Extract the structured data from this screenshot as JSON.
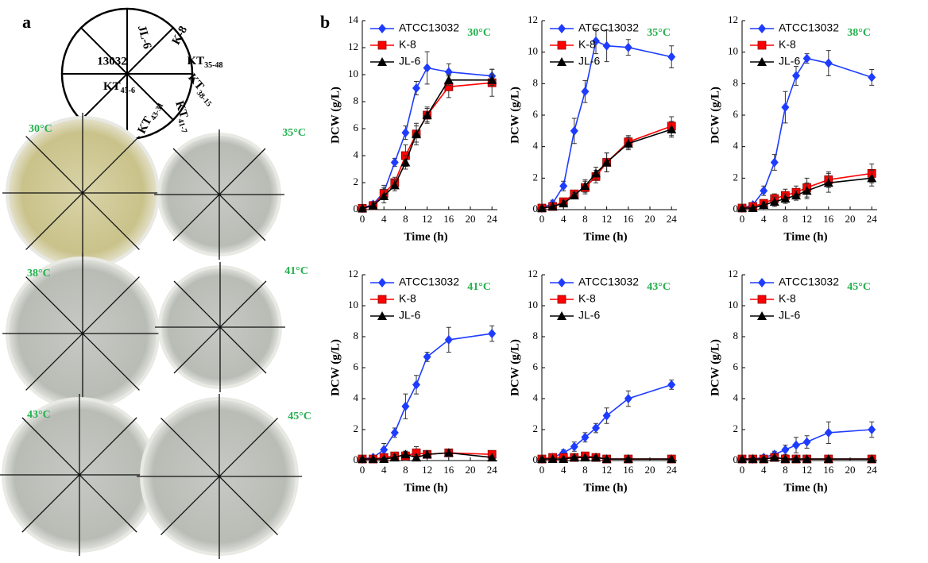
{
  "panel_labels": [
    "a",
    "b"
  ],
  "layout_diagram": {
    "sectors": [
      "JL-6",
      "K-8",
      {
        "main": "KT",
        "sub": "35-48"
      },
      {
        "main": "KT",
        "sub": "38-15"
      },
      {
        "main": "KT",
        "sub": "41-7"
      },
      {
        "main": "KT",
        "sub": "43-31"
      },
      {
        "main": "KT",
        "sub": "45-6"
      },
      "13032"
    ]
  },
  "plates": [
    {
      "label": "30°C"
    },
    {
      "label": "35°C"
    },
    {
      "label": "38°C"
    },
    {
      "label": "41°C"
    },
    {
      "label": "43°C"
    },
    {
      "label": "45°C"
    }
  ],
  "chart_data": [
    {
      "type": "line",
      "title": "30°C",
      "x_label": "Time (h)",
      "y_label": "DCW (g/L)",
      "xlim": [
        0,
        25
      ],
      "xticks": [
        0,
        4,
        8,
        12,
        16,
        20,
        24
      ],
      "ylim": [
        0,
        14
      ],
      "yticks": [
        0,
        2,
        4,
        6,
        8,
        10,
        12,
        14
      ],
      "x": [
        0,
        2,
        4,
        6,
        8,
        10,
        12,
        16,
        24
      ],
      "series": [
        {
          "name": "ATCC13032",
          "color": "#1e3cff",
          "marker": "diamond",
          "values": [
            0.1,
            0.4,
            1.3,
            3.5,
            5.7,
            9.0,
            10.5,
            10.2,
            9.9
          ],
          "errors": [
            0.1,
            0.2,
            0.5,
            0.3,
            0.5,
            0.5,
            1.2,
            0.6,
            0.5
          ]
        },
        {
          "name": "K-8",
          "color": "#ff0000",
          "marker": "square",
          "values": [
            0.1,
            0.3,
            1.2,
            2.0,
            4.0,
            5.6,
            7.0,
            9.1,
            9.4
          ],
          "errors": [
            0.1,
            0.2,
            0.4,
            0.4,
            0.8,
            0.8,
            0.6,
            0.8,
            1.0
          ]
        },
        {
          "name": "JL-6",
          "color": "#000000",
          "marker": "triangle",
          "values": [
            0.1,
            0.3,
            1.0,
            1.8,
            3.5,
            5.6,
            7.0,
            9.6,
            9.6
          ],
          "errors": [
            0.1,
            0.2,
            0.5,
            0.4,
            0.5,
            0.6,
            0.5,
            0.4,
            0.4
          ]
        }
      ]
    },
    {
      "type": "line",
      "title": "35°C",
      "x_label": "Time (h)",
      "y_label": "DCW (g/L)",
      "xlim": [
        0,
        25
      ],
      "xticks": [
        0,
        4,
        8,
        12,
        16,
        20,
        24
      ],
      "ylim": [
        0,
        12
      ],
      "yticks": [
        0,
        2,
        4,
        6,
        8,
        10,
        12
      ],
      "x": [
        0,
        2,
        4,
        6,
        8,
        10,
        12,
        16,
        24
      ],
      "series": [
        {
          "name": "ATCC13032",
          "color": "#1e3cff",
          "marker": "diamond",
          "values": [
            0.1,
            0.4,
            1.5,
            5.0,
            7.5,
            10.7,
            10.4,
            10.3,
            9.7
          ],
          "errors": [
            0.1,
            0.2,
            0.3,
            0.8,
            0.7,
            0.8,
            1.0,
            0.5,
            0.7
          ]
        },
        {
          "name": "K-8",
          "color": "#ff0000",
          "marker": "square",
          "values": [
            0.1,
            0.2,
            0.5,
            1.0,
            1.4,
            2.1,
            3.0,
            4.3,
            5.3
          ],
          "errors": [
            0.1,
            0.1,
            0.2,
            0.2,
            0.4,
            0.4,
            0.6,
            0.4,
            0.6
          ]
        },
        {
          "name": "JL-6",
          "color": "#000000",
          "marker": "triangle",
          "values": [
            0.1,
            0.2,
            0.4,
            0.9,
            1.5,
            2.3,
            3.0,
            4.2,
            5.1
          ],
          "errors": [
            0.1,
            0.1,
            0.2,
            0.2,
            0.4,
            0.4,
            0.6,
            0.4,
            0.5
          ]
        }
      ]
    },
    {
      "type": "line",
      "title": "38°C",
      "x_label": "Time (h)",
      "y_label": "DCW (g/L)",
      "xlim": [
        0,
        25
      ],
      "xticks": [
        0,
        4,
        8,
        12,
        16,
        20,
        24
      ],
      "ylim": [
        0,
        12
      ],
      "yticks": [
        0,
        2,
        4,
        6,
        8,
        10,
        12
      ],
      "x": [
        0,
        2,
        4,
        6,
        8,
        10,
        12,
        16,
        24
      ],
      "series": [
        {
          "name": "ATCC13032",
          "color": "#1e3cff",
          "marker": "diamond",
          "values": [
            0.1,
            0.3,
            1.2,
            3.0,
            6.5,
            8.5,
            9.6,
            9.3,
            8.4
          ],
          "errors": [
            0.1,
            0.1,
            0.3,
            0.5,
            1.0,
            0.6,
            0.3,
            0.8,
            0.5
          ]
        },
        {
          "name": "K-8",
          "color": "#ff0000",
          "marker": "square",
          "values": [
            0.1,
            0.2,
            0.4,
            0.7,
            0.9,
            1.1,
            1.4,
            1.9,
            2.3
          ],
          "errors": [
            0.1,
            0.1,
            0.2,
            0.3,
            0.4,
            0.4,
            0.6,
            0.5,
            0.6
          ]
        },
        {
          "name": "JL-6",
          "color": "#000000",
          "marker": "triangle",
          "values": [
            0.1,
            0.1,
            0.3,
            0.5,
            0.7,
            0.9,
            1.2,
            1.7,
            2.0
          ],
          "errors": [
            0.05,
            0.1,
            0.2,
            0.3,
            0.3,
            0.3,
            0.5,
            0.6,
            0.5
          ]
        }
      ]
    },
    {
      "type": "line",
      "title": "41°C",
      "x_label": "Time (h)",
      "y_label": "DCW (g/L)",
      "xlim": [
        0,
        25
      ],
      "xticks": [
        0,
        4,
        8,
        12,
        16,
        20,
        24
      ],
      "ylim": [
        0,
        12
      ],
      "yticks": [
        0,
        2,
        4,
        6,
        8,
        10,
        12
      ],
      "x": [
        0,
        2,
        4,
        6,
        8,
        10,
        12,
        16,
        24
      ],
      "series": [
        {
          "name": "ATCC13032",
          "color": "#1e3cff",
          "marker": "diamond",
          "values": [
            0.1,
            0.2,
            0.7,
            1.8,
            3.5,
            4.9,
            6.7,
            7.8,
            8.2
          ],
          "errors": [
            0.1,
            0.1,
            0.4,
            0.3,
            0.8,
            0.6,
            0.3,
            0.8,
            0.5
          ]
        },
        {
          "name": "K-8",
          "color": "#ff0000",
          "marker": "square",
          "values": [
            0.1,
            0.1,
            0.2,
            0.3,
            0.3,
            0.5,
            0.4,
            0.5,
            0.4
          ],
          "errors": [
            0.1,
            0.1,
            0.1,
            0.2,
            0.3,
            0.4,
            0.2,
            0.2,
            0.2
          ]
        },
        {
          "name": "JL-6",
          "color": "#000000",
          "marker": "triangle",
          "values": [
            0.1,
            0.1,
            0.1,
            0.2,
            0.4,
            0.2,
            0.4,
            0.5,
            0.2
          ],
          "errors": [
            0.1,
            0.1,
            0.1,
            0.2,
            0.2,
            0.2,
            0.2,
            0.2,
            0.1
          ]
        }
      ]
    },
    {
      "type": "line",
      "title": "43°C",
      "x_label": "Time (h)",
      "y_label": "DCW (g/L)",
      "xlim": [
        0,
        25
      ],
      "xticks": [
        0,
        4,
        8,
        12,
        16,
        20,
        24
      ],
      "ylim": [
        0,
        12
      ],
      "yticks": [
        0,
        2,
        4,
        6,
        8,
        10,
        12
      ],
      "x": [
        0,
        2,
        4,
        6,
        8,
        10,
        12,
        16,
        24
      ],
      "series": [
        {
          "name": "ATCC13032",
          "color": "#1e3cff",
          "marker": "diamond",
          "values": [
            0.1,
            0.2,
            0.5,
            0.9,
            1.5,
            2.1,
            2.9,
            4.0,
            4.9
          ],
          "errors": [
            0.1,
            0.1,
            0.2,
            0.3,
            0.3,
            0.3,
            0.5,
            0.5,
            0.3
          ]
        },
        {
          "name": "K-8",
          "color": "#ff0000",
          "marker": "square",
          "values": [
            0.1,
            0.2,
            0.2,
            0.2,
            0.3,
            0.2,
            0.1,
            0.1,
            0.1
          ],
          "errors": [
            0.1,
            0.1,
            0.1,
            0.2,
            0.2,
            0.1,
            0.1,
            0.1,
            0.1
          ]
        },
        {
          "name": "JL-6",
          "color": "#000000",
          "marker": "triangle",
          "values": [
            0.1,
            0.1,
            0.1,
            0.2,
            0.2,
            0.2,
            0.1,
            0.1,
            0.1
          ],
          "errors": [
            0.1,
            0.1,
            0.1,
            0.1,
            0.1,
            0.1,
            0.1,
            0.1,
            0.1
          ]
        }
      ]
    },
    {
      "type": "line",
      "title": "45°C",
      "x_label": "Time (h)",
      "y_label": "DCW (g/L)",
      "xlim": [
        0,
        25
      ],
      "xticks": [
        0,
        4,
        8,
        12,
        16,
        20,
        24
      ],
      "ylim": [
        0,
        12
      ],
      "yticks": [
        0,
        2,
        4,
        6,
        8,
        10,
        12
      ],
      "x": [
        0,
        2,
        4,
        6,
        8,
        10,
        12,
        16,
        24
      ],
      "series": [
        {
          "name": "ATCC13032",
          "color": "#1e3cff",
          "marker": "diamond",
          "values": [
            0.1,
            0.1,
            0.2,
            0.4,
            0.7,
            1.0,
            1.2,
            1.8,
            2.0
          ],
          "errors": [
            0.1,
            0.1,
            0.1,
            0.2,
            0.3,
            0.5,
            0.4,
            0.7,
            0.5
          ]
        },
        {
          "name": "K-8",
          "color": "#ff0000",
          "marker": "square",
          "values": [
            0.1,
            0.1,
            0.1,
            0.2,
            0.1,
            0.1,
            0.1,
            0.1,
            0.1
          ],
          "errors": [
            0.1,
            0.1,
            0.1,
            0.1,
            0.1,
            0.1,
            0.1,
            0.1,
            0.1
          ]
        },
        {
          "name": "JL-6",
          "color": "#000000",
          "marker": "triangle",
          "values": [
            0.1,
            0.1,
            0.1,
            0.2,
            0.1,
            0.1,
            0.1,
            0.1,
            0.1
          ],
          "errors": [
            0.1,
            0.1,
            0.1,
            0.1,
            0.1,
            0.1,
            0.1,
            0.1,
            0.1
          ]
        }
      ]
    }
  ]
}
